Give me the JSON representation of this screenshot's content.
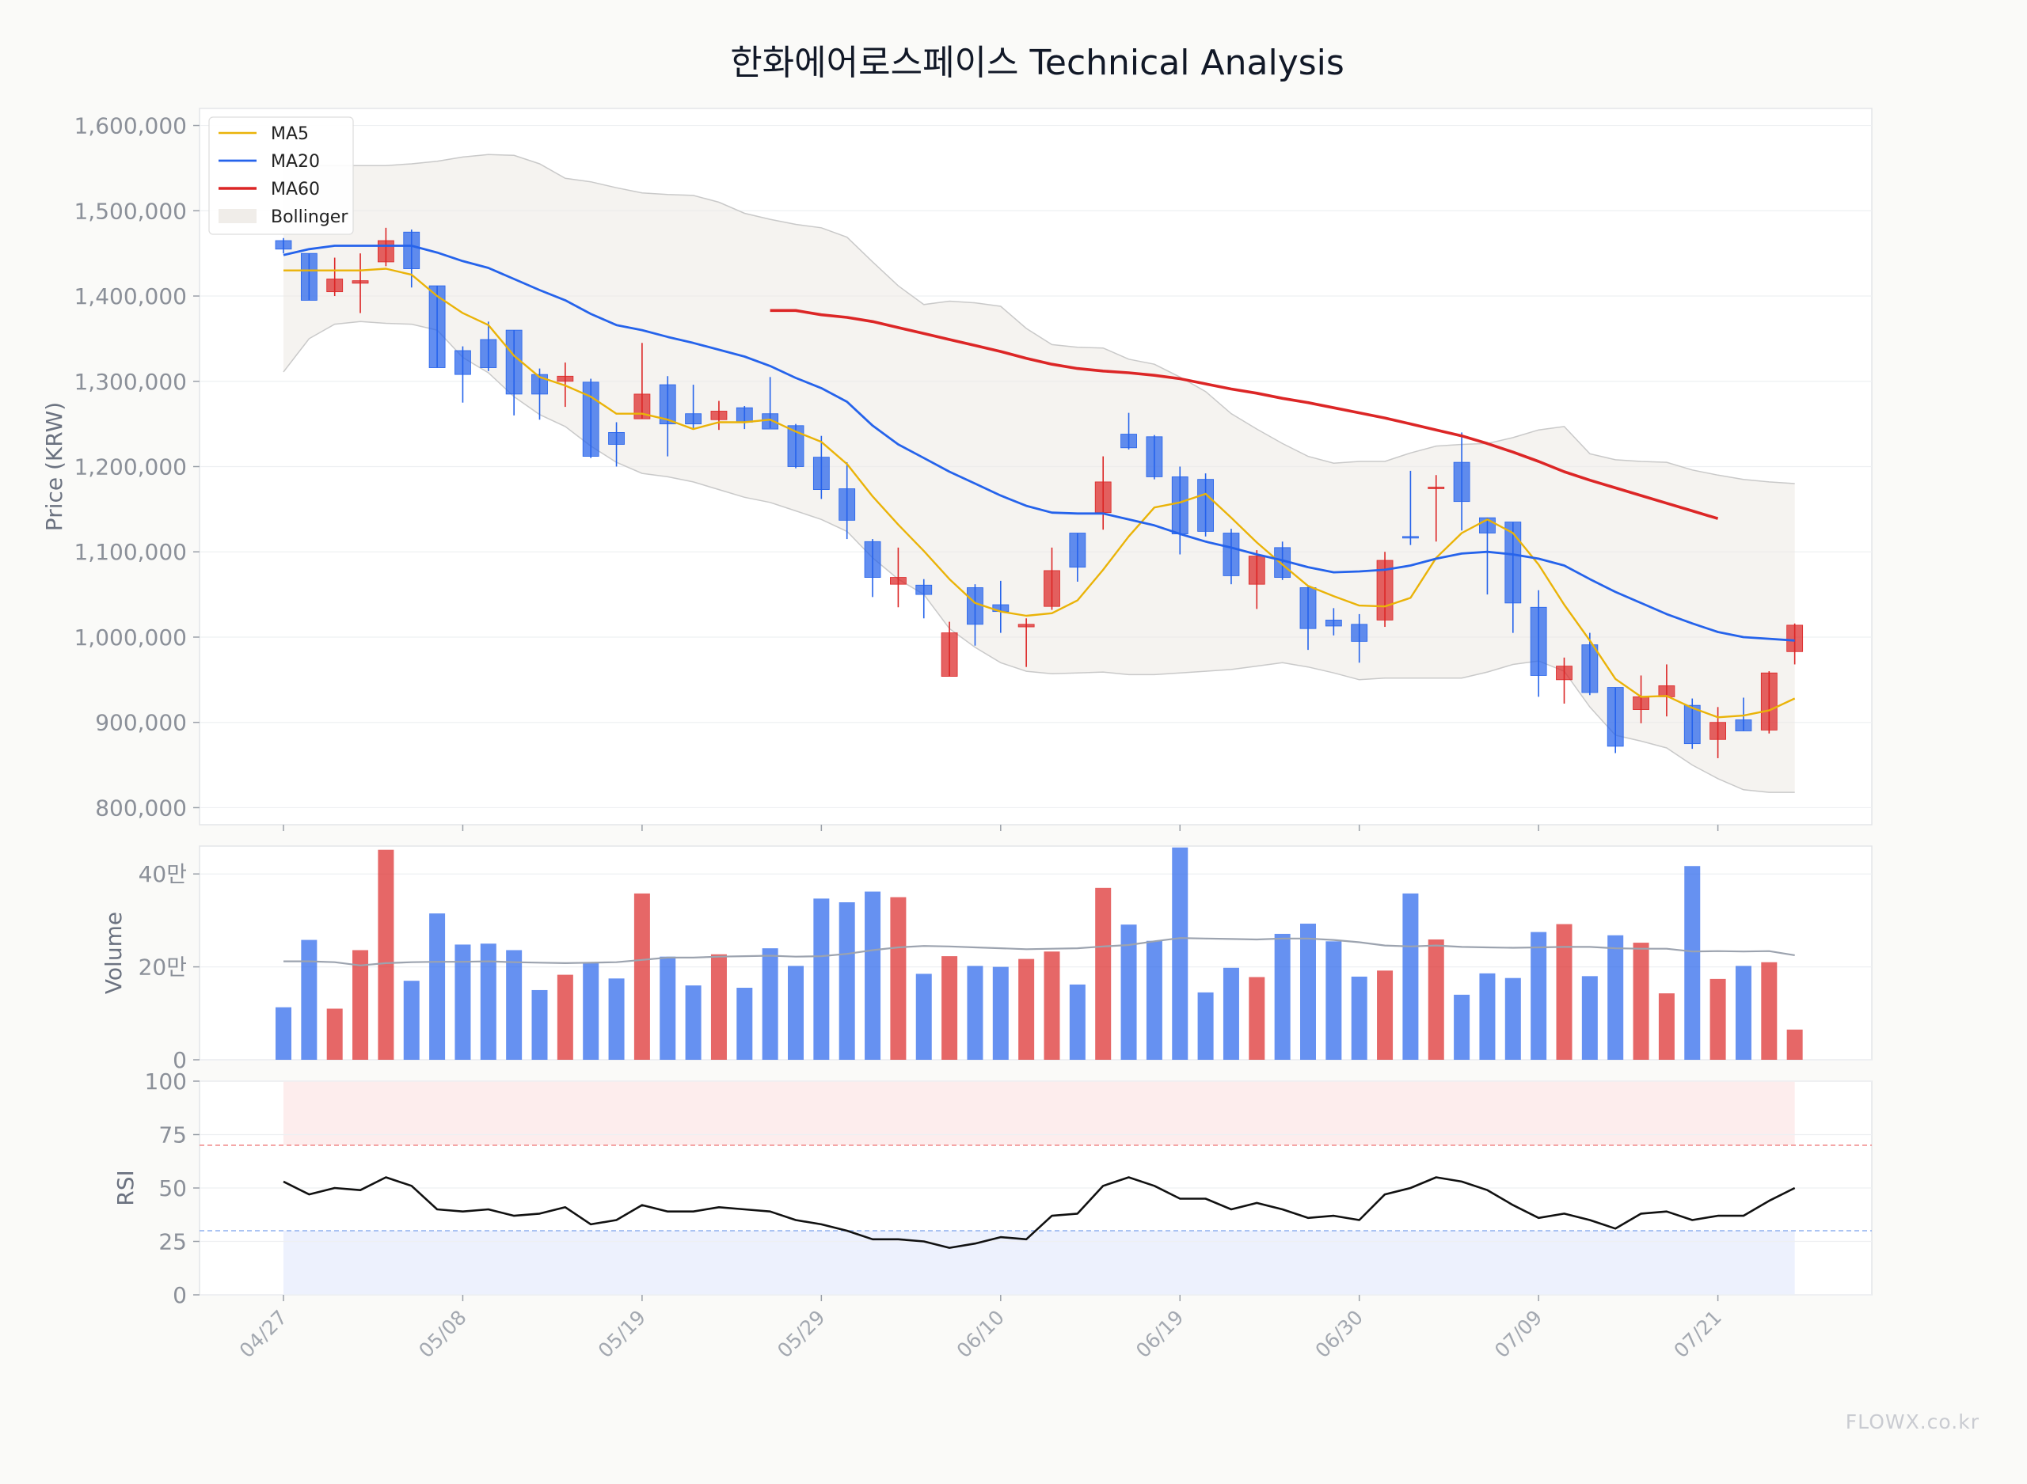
{
  "title": "한화에어로스페이스 Technical Analysis",
  "watermark": "FLOWX.co.kr",
  "colors": {
    "up": "#dc2626",
    "down": "#2563eb",
    "ma5": "#eab308",
    "ma20": "#2563eb",
    "ma60": "#dc2626",
    "bollinger_fill": "#ece9e4",
    "volume_ma": "#9ca3af",
    "rsi": "#111111",
    "overbought_zone": "#fde8e8",
    "oversold_zone": "#e8eefc"
  },
  "chart_data": [
    {
      "type": "candlestick",
      "panel": "price",
      "ylabel": "Price (KRW)",
      "ylim": [
        780000,
        1620000
      ],
      "yticks": [
        800000,
        900000,
        1000000,
        1100000,
        1200000,
        1300000,
        1400000,
        1500000,
        1600000
      ],
      "ytick_labels": [
        "800,000",
        "900,000",
        "1,000,000",
        "1,100,000",
        "1,200,000",
        "1,300,000",
        "1,400,000",
        "1,500,000",
        "1,600,000"
      ],
      "x_ticks": [
        {
          "index": 0,
          "label": "04/27"
        },
        {
          "index": 7,
          "label": "05/08"
        },
        {
          "index": 14,
          "label": "05/19"
        },
        {
          "index": 21,
          "label": "05/29"
        },
        {
          "index": 28,
          "label": "06/10"
        },
        {
          "index": 35,
          "label": "06/19"
        },
        {
          "index": 42,
          "label": "06/30"
        },
        {
          "index": 49,
          "label": "07/09"
        },
        {
          "index": 56,
          "label": "07/21"
        }
      ],
      "legend": [
        "MA5",
        "MA20",
        "MA60",
        "Bollinger"
      ],
      "legend_position": "top-left",
      "ohlc": [
        [
          1465000,
          1468000,
          1450000,
          1455000
        ],
        [
          1450000,
          1450000,
          1395000,
          1395000
        ],
        [
          1405000,
          1445000,
          1400000,
          1420000
        ],
        [
          1415000,
          1450000,
          1380000,
          1418000
        ],
        [
          1440000,
          1480000,
          1435000,
          1465000
        ],
        [
          1475000,
          1478000,
          1410000,
          1432000
        ],
        [
          1412000,
          1412000,
          1316000,
          1316000
        ],
        [
          1336000,
          1341000,
          1275000,
          1308000
        ],
        [
          1349000,
          1370000,
          1312000,
          1316000
        ],
        [
          1360000,
          1360000,
          1260000,
          1285000
        ],
        [
          1308000,
          1315000,
          1255000,
          1285000
        ],
        [
          1300000,
          1322000,
          1270000,
          1306000
        ],
        [
          1299000,
          1303000,
          1210000,
          1212000
        ],
        [
          1240000,
          1252000,
          1200000,
          1226000
        ],
        [
          1256000,
          1345000,
          1256000,
          1285000
        ],
        [
          1296000,
          1306000,
          1212000,
          1250000
        ],
        [
          1262000,
          1296000,
          1245000,
          1250000
        ],
        [
          1255000,
          1277000,
          1243000,
          1265000
        ],
        [
          1269000,
          1271000,
          1244000,
          1252000
        ],
        [
          1262000,
          1305000,
          1245000,
          1244000
        ],
        [
          1248000,
          1250000,
          1198000,
          1200000
        ],
        [
          1211000,
          1236000,
          1162000,
          1173000
        ],
        [
          1174000,
          1205000,
          1115000,
          1137000
        ],
        [
          1112000,
          1115000,
          1047000,
          1070000
        ],
        [
          1062000,
          1105000,
          1035000,
          1070000
        ],
        [
          1061000,
          1068000,
          1022000,
          1050000
        ],
        [
          954000,
          1018000,
          954000,
          1005000
        ],
        [
          1058000,
          1062000,
          990000,
          1015000
        ],
        [
          1038000,
          1066000,
          1005000,
          1030000
        ],
        [
          1012000,
          1022000,
          965000,
          1015000
        ],
        [
          1036000,
          1105000,
          1032000,
          1078000
        ],
        [
          1122000,
          1122000,
          1065000,
          1082000
        ],
        [
          1146000,
          1212000,
          1126000,
          1182000
        ],
        [
          1238000,
          1263000,
          1220000,
          1222000
        ],
        [
          1235000,
          1237000,
          1185000,
          1188000
        ],
        [
          1188000,
          1200000,
          1097000,
          1121000
        ],
        [
          1185000,
          1192000,
          1118000,
          1124000
        ],
        [
          1122000,
          1127000,
          1062000,
          1072000
        ],
        [
          1062000,
          1102000,
          1033000,
          1095000
        ],
        [
          1105000,
          1112000,
          1067000,
          1070000
        ],
        [
          1058000,
          1060000,
          985000,
          1010000
        ],
        [
          1020000,
          1034000,
          1002000,
          1013000
        ],
        [
          1015000,
          1027000,
          970000,
          995000
        ],
        [
          1020000,
          1100000,
          1012000,
          1090000
        ],
        [
          1118000,
          1195000,
          1108000,
          1117000
        ],
        [
          1174000,
          1190000,
          1112000,
          1176000
        ],
        [
          1205000,
          1240000,
          1125000,
          1159000
        ],
        [
          1140000,
          1140000,
          1050000,
          1122000
        ],
        [
          1135000,
          1135000,
          1005000,
          1040000
        ],
        [
          1035000,
          1055000,
          930000,
          955000
        ],
        [
          950000,
          976000,
          922000,
          966000
        ],
        [
          991000,
          1005000,
          932000,
          935000
        ],
        [
          941000,
          941000,
          864000,
          872000
        ],
        [
          915000,
          955000,
          899000,
          930000
        ],
        [
          930000,
          968000,
          907000,
          943000
        ],
        [
          920000,
          928000,
          869000,
          875000
        ],
        [
          880000,
          918000,
          858000,
          900000
        ],
        [
          903000,
          929000,
          890000,
          890000
        ],
        [
          891000,
          960000,
          887000,
          958000
        ],
        [
          983000,
          1016000,
          968000,
          1014000
        ]
      ],
      "series": [
        {
          "name": "MA5",
          "values": [
            1430000,
            1430000,
            1430000,
            1430000,
            1432000,
            1425000,
            1400000,
            1380000,
            1366000,
            1330000,
            1305000,
            1295000,
            1282000,
            1262000,
            1262000,
            1255000,
            1244000,
            1252000,
            1252000,
            1255000,
            1241000,
            1229000,
            1203000,
            1165000,
            1132000,
            1101000,
            1068000,
            1040000,
            1030000,
            1025000,
            1028000,
            1043000,
            1079000,
            1118000,
            1152000,
            1158000,
            1168000,
            1140000,
            1111000,
            1085000,
            1060000,
            1048000,
            1037000,
            1036000,
            1046000,
            1093000,
            1122000,
            1138000,
            1122000,
            1085000,
            1038000,
            996000,
            951000,
            930000,
            931000,
            917000,
            906000,
            908000,
            914000,
            928000
          ]
        },
        {
          "name": "MA20",
          "values": [
            1448000,
            1455000,
            1459000,
            1459000,
            1459000,
            1459000,
            1451000,
            1441000,
            1433000,
            1420000,
            1407000,
            1395000,
            1379000,
            1366000,
            1360000,
            1352000,
            1345000,
            1337000,
            1329000,
            1318000,
            1304000,
            1292000,
            1276000,
            1248000,
            1226000,
            1210000,
            1194000,
            1180000,
            1166000,
            1154000,
            1146000,
            1145000,
            1145000,
            1138000,
            1131000,
            1121000,
            1112000,
            1105000,
            1097000,
            1090000,
            1082000,
            1076000,
            1077000,
            1079000,
            1084000,
            1092000,
            1098000,
            1100000,
            1097000,
            1092000,
            1084000,
            1068000,
            1053000,
            1040000,
            1027000,
            1016000,
            1006000,
            1000000,
            998000,
            996000
          ]
        },
        {
          "name": "MA60",
          "start_index": 19,
          "values": [
            1383000,
            1383000,
            1378000,
            1375000,
            1370000,
            1363000,
            1356000,
            1349000,
            1342000,
            1335000,
            1327000,
            1320000,
            1315000,
            1312000,
            1310000,
            1307000,
            1303000,
            1297000,
            1291000,
            1286000,
            1280000,
            1275000,
            1269000,
            1263000,
            1257000,
            1250000,
            1243000,
            1236000,
            1227000,
            1217000,
            1206000,
            1194000,
            1184000,
            1175000,
            1166000,
            1157000,
            1148000,
            1139000
          ]
        },
        {
          "name": "Bollinger Upper",
          "values": [
            1553000,
            1553000,
            1553000,
            1553000,
            1553000,
            1555000,
            1558000,
            1563000,
            1566000,
            1565000,
            1555000,
            1538000,
            1534000,
            1527000,
            1521000,
            1519000,
            1518000,
            1510000,
            1497000,
            1490000,
            1484000,
            1480000,
            1469000,
            1440000,
            1412000,
            1390000,
            1394000,
            1392000,
            1388000,
            1362000,
            1343000,
            1340000,
            1339000,
            1326000,
            1320000,
            1305000,
            1288000,
            1262000,
            1244000,
            1227000,
            1212000,
            1204000,
            1206000,
            1206000,
            1216000,
            1224000,
            1226000,
            1227000,
            1234000,
            1243000,
            1247000,
            1215000,
            1208000,
            1206000,
            1205000,
            1196000,
            1190000,
            1185000,
            1182000,
            1180000
          ]
        },
        {
          "name": "Bollinger Lower",
          "values": [
            1311000,
            1350000,
            1367000,
            1370000,
            1368000,
            1367000,
            1360000,
            1328000,
            1310000,
            1282000,
            1261000,
            1247000,
            1224000,
            1205000,
            1192000,
            1188000,
            1182000,
            1173000,
            1164000,
            1158000,
            1148000,
            1138000,
            1124000,
            1093000,
            1068000,
            1050000,
            1010000,
            988000,
            970000,
            960000,
            957000,
            958000,
            959000,
            956000,
            956000,
            958000,
            960000,
            962000,
            966000,
            970000,
            965000,
            958000,
            950000,
            952000,
            952000,
            952000,
            952000,
            959000,
            968000,
            972000,
            960000,
            918000,
            885000,
            878000,
            870000,
            850000,
            834000,
            821000,
            818000,
            818000
          ]
        }
      ]
    },
    {
      "type": "bar",
      "panel": "volume",
      "ylabel": "Volume",
      "ylim": [
        0,
        460000
      ],
      "yticks": [
        0,
        200000,
        400000
      ],
      "ytick_labels": [
        "0",
        "20만",
        "40만"
      ],
      "values": [
        113000,
        258000,
        110000,
        236000,
        452000,
        170000,
        315000,
        248000,
        250000,
        236000,
        150000,
        183000,
        210000,
        175000,
        358000,
        222000,
        160000,
        227000,
        155000,
        240000,
        202000,
        347000,
        339000,
        362000,
        350000,
        185000,
        223000,
        202000,
        200000,
        217000,
        233000,
        162000,
        370000,
        291000,
        256000,
        457000,
        145000,
        198000,
        178000,
        271000,
        293000,
        255000,
        179000,
        192000,
        358000,
        259000,
        140000,
        186000,
        176000,
        275000,
        292000,
        180000,
        268000,
        252000,
        143000,
        417000,
        174000,
        202000,
        210000,
        65000
      ],
      "volume_ma": [
        212000,
        212000,
        210000,
        203000,
        208000,
        210000,
        211000,
        211000,
        212000,
        210000,
        209000,
        208000,
        209000,
        210000,
        215000,
        220000,
        220000,
        222000,
        223000,
        224000,
        222000,
        223000,
        228000,
        236000,
        242000,
        245000,
        244000,
        242000,
        240000,
        238000,
        239000,
        240000,
        244000,
        247000,
        255000,
        262000,
        261000,
        260000,
        259000,
        261000,
        261000,
        258000,
        253000,
        246000,
        244000,
        246000,
        243000,
        242000,
        241000,
        242000,
        243000,
        243000,
        240000,
        239000,
        239000,
        233000,
        234000,
        233000,
        234000,
        225000
      ]
    },
    {
      "type": "line",
      "panel": "rsi",
      "ylabel": "RSI",
      "ylim": [
        0,
        100
      ],
      "yticks": [
        0,
        25,
        50,
        75,
        100
      ],
      "overbought": 70,
      "oversold": 30,
      "values": [
        53,
        47,
        50,
        49,
        55,
        51,
        40,
        39,
        40,
        37,
        38,
        41,
        33,
        35,
        42,
        39,
        39,
        41,
        40,
        39,
        35,
        33,
        30,
        26,
        26,
        25,
        22,
        24,
        27,
        26,
        37,
        38,
        51,
        55,
        51,
        45,
        45,
        40,
        43,
        40,
        36,
        37,
        35,
        47,
        50,
        55,
        53,
        49,
        42,
        36,
        38,
        35,
        31,
        38,
        39,
        35,
        37,
        37,
        44,
        50
      ]
    }
  ]
}
